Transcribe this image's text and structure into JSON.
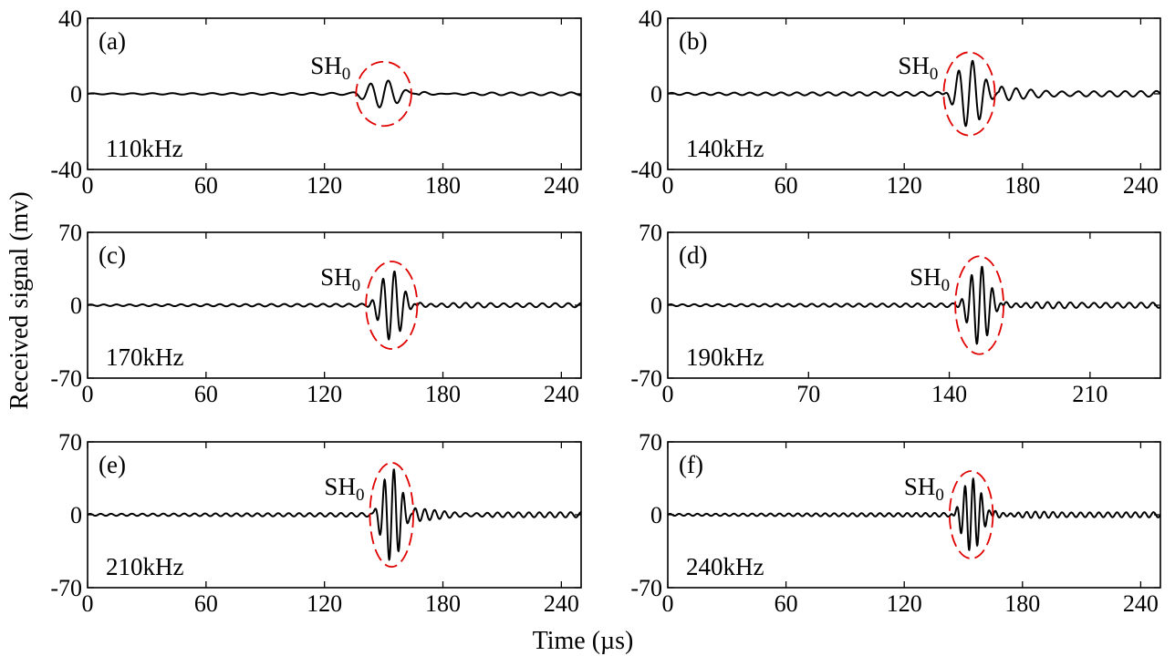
{
  "figure": {
    "ylabel": "Received signal (mv)",
    "xlabel": "Time (µs)"
  },
  "chart_data": [
    {
      "type": "line",
      "panel_label": "(a)",
      "frequency_label": "110kHz",
      "annotation": {
        "main": "SH",
        "sub": "0"
      },
      "xlim": [
        0,
        250
      ],
      "ylim": [
        -40,
        40
      ],
      "xticks": [
        0,
        60,
        120,
        180,
        240
      ],
      "yticks": [
        -40,
        0,
        40
      ],
      "packet": {
        "center": 150,
        "half_width": 18,
        "amplitude": 7,
        "carrier_khz": 110
      },
      "noise_amplitude": 0.8,
      "highlight": {
        "center_x": 150,
        "center_y": 0,
        "rx": 14,
        "ry": 17,
        "color": "#e00000"
      }
    },
    {
      "type": "line",
      "panel_label": "(b)",
      "frequency_label": "140kHz",
      "annotation": {
        "main": "SH",
        "sub": "0"
      },
      "xlim": [
        0,
        250
      ],
      "ylim": [
        -40,
        40
      ],
      "xticks": [
        0,
        60,
        120,
        180,
        240
      ],
      "yticks": [
        -40,
        0,
        40
      ],
      "packet": {
        "center": 153,
        "half_width": 15,
        "amplitude": 18,
        "carrier_khz": 140
      },
      "noise_amplitude": 1.5,
      "highlight": {
        "center_x": 153,
        "center_y": 0,
        "rx": 13,
        "ry": 22,
        "color": "#e00000"
      }
    },
    {
      "type": "line",
      "panel_label": "(c)",
      "frequency_label": "170kHz",
      "annotation": {
        "main": "SH",
        "sub": "0"
      },
      "xlim": [
        0,
        250
      ],
      "ylim": [
        -70,
        70
      ],
      "xticks": [
        0,
        60,
        120,
        180,
        240
      ],
      "yticks": [
        -70,
        0,
        70
      ],
      "packet": {
        "center": 154,
        "half_width": 13,
        "amplitude": 35,
        "carrier_khz": 170
      },
      "noise_amplitude": 2,
      "highlight": {
        "center_x": 154,
        "center_y": 0,
        "rx": 13,
        "ry": 42,
        "color": "#e00000"
      }
    },
    {
      "type": "line",
      "panel_label": "(d)",
      "frequency_label": "190kHz",
      "annotation": {
        "main": "SH",
        "sub": "0"
      },
      "xlim": [
        0,
        245
      ],
      "ylim": [
        -70,
        70
      ],
      "xticks": [
        0,
        70,
        140,
        210
      ],
      "yticks": [
        -70,
        0,
        70
      ],
      "packet": {
        "center": 155,
        "half_width": 12,
        "amplitude": 40,
        "carrier_khz": 190
      },
      "noise_amplitude": 2.5,
      "highlight": {
        "center_x": 155,
        "center_y": 0,
        "rx": 12,
        "ry": 47,
        "color": "#e00000"
      }
    },
    {
      "type": "line",
      "panel_label": "(e)",
      "frequency_label": "210kHz",
      "annotation": {
        "main": "SH",
        "sub": "0"
      },
      "xlim": [
        0,
        250
      ],
      "ylim": [
        -70,
        70
      ],
      "xticks": [
        0,
        60,
        120,
        180,
        240
      ],
      "yticks": [
        -70,
        0,
        70
      ],
      "packet": {
        "center": 154,
        "half_width": 11,
        "amplitude": 43,
        "carrier_khz": 210
      },
      "noise_amplitude": 2.5,
      "highlight": {
        "center_x": 154,
        "center_y": 0,
        "rx": 11,
        "ry": 50,
        "color": "#e00000"
      }
    },
    {
      "type": "line",
      "panel_label": "(f)",
      "frequency_label": "240kHz",
      "annotation": {
        "main": "SH",
        "sub": "0"
      },
      "xlim": [
        0,
        250
      ],
      "ylim": [
        -70,
        70
      ],
      "xticks": [
        0,
        60,
        120,
        180,
        240
      ],
      "yticks": [
        -70,
        0,
        70
      ],
      "packet": {
        "center": 154,
        "half_width": 11,
        "amplitude": 35,
        "carrier_khz": 240
      },
      "noise_amplitude": 2.5,
      "highlight": {
        "center_x": 154,
        "center_y": 0,
        "rx": 11,
        "ry": 42,
        "color": "#e00000"
      }
    }
  ]
}
